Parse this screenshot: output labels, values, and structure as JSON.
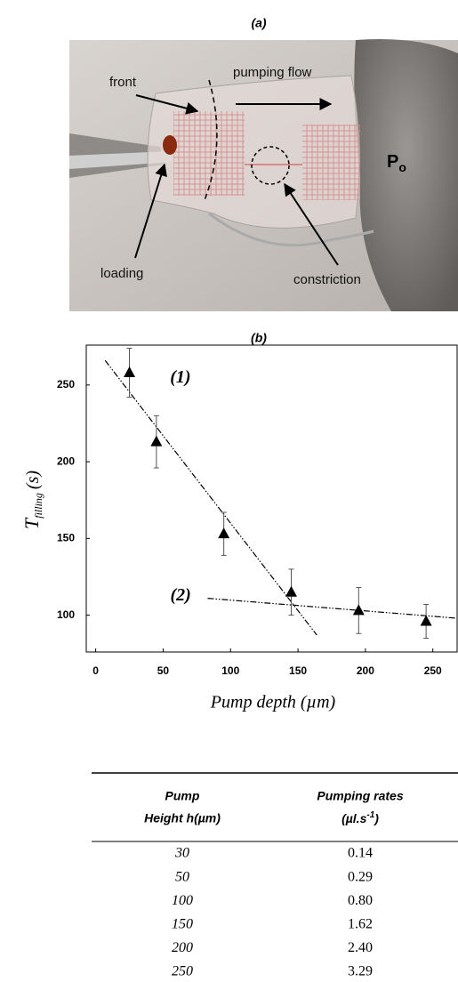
{
  "panel_a": {
    "label": "(a)",
    "photo_labels": {
      "front": "front",
      "pumping_flow": "pumping flow",
      "loading": "loading",
      "constriction": "constriction",
      "pressure": "P",
      "pressure_subscript": "o"
    }
  },
  "panel_b": {
    "label": "(b)"
  },
  "chart_data": {
    "type": "scatter",
    "x_label": "Pump depth (µm)",
    "y_label": {
      "symbol": "T",
      "subscript": "filling",
      "unit": "(s)"
    },
    "x": [
      25,
      45,
      95,
      145,
      195,
      245
    ],
    "values": [
      258,
      213,
      153,
      115,
      103,
      96
    ],
    "errors": [
      16,
      17,
      14,
      15,
      15,
      11
    ],
    "color": "#000000",
    "xlim": [
      -7,
      268
    ],
    "ylim": [
      76,
      276
    ],
    "xticks": [
      0,
      50,
      100,
      150,
      200,
      250
    ],
    "yticks": [
      100,
      150,
      200,
      250
    ],
    "fits": [
      {
        "label": "(1)",
        "x": [
          7,
          164
        ],
        "values": [
          266,
          87
        ]
      },
      {
        "label": "(2)",
        "x": [
          83,
          268
        ],
        "values": [
          111,
          98
        ]
      }
    ]
  },
  "table": {
    "header": [
      {
        "line1": "Pump",
        "line2": "Height  h(µm)"
      },
      {
        "line1": "Pumping rates",
        "line2": "(µl.s",
        "sup": "-1",
        "tail": ")"
      }
    ],
    "rows": [
      [
        "30",
        "0.14"
      ],
      [
        "50",
        "0.29"
      ],
      [
        "100",
        "0.80"
      ],
      [
        "150",
        "1.62"
      ],
      [
        "200",
        "2.40"
      ],
      [
        "250",
        "3.29"
      ]
    ]
  }
}
